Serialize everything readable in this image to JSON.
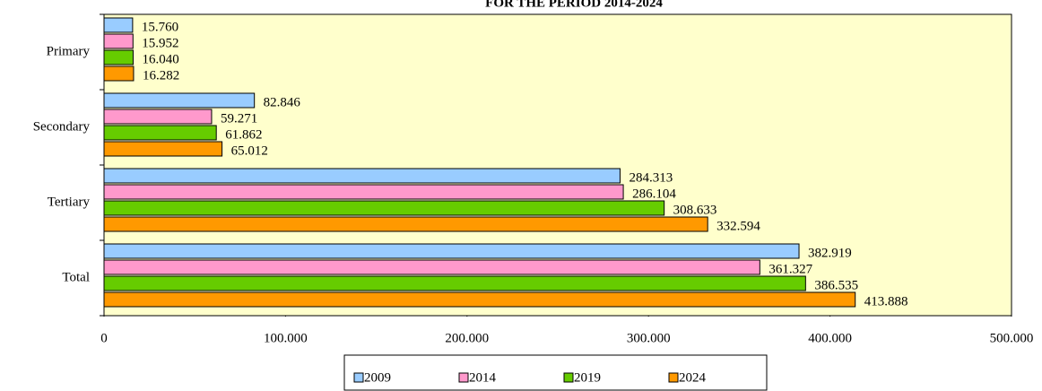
{
  "chart_data": {
    "type": "bar",
    "orientation": "horizontal",
    "title": "FOR THE PERIOD 2014-2024",
    "categories": [
      "Primary",
      "Secondary",
      "Tertiary",
      "Total"
    ],
    "series": [
      {
        "name": "2009",
        "color": "#99ccff",
        "values": [
          15760,
          82846,
          284313,
          382919
        ],
        "value_labels": [
          "15.760",
          "82.846",
          "284.313",
          "382.919"
        ]
      },
      {
        "name": "2014",
        "color": "#ff99cc",
        "values": [
          15952,
          59271,
          286104,
          361327
        ],
        "value_labels": [
          "15.952",
          "59.271",
          "286.104",
          "361.327"
        ]
      },
      {
        "name": "2019",
        "color": "#66cc00",
        "values": [
          16040,
          61862,
          308633,
          386535
        ],
        "value_labels": [
          "16.040",
          "61.862",
          "308.633",
          "386.535"
        ]
      },
      {
        "name": "2024",
        "color": "#ff9900",
        "values": [
          16282,
          65012,
          332594,
          413888
        ],
        "value_labels": [
          "16.282",
          "65.012",
          "332.594",
          "413.888"
        ]
      }
    ],
    "xlim": [
      0,
      500000
    ],
    "xticks": [
      0,
      {
        "value": 100000,
        "label": "100.000"
      },
      {
        "value": 200000,
        "label": "200.000"
      },
      {
        "value": 300000,
        "label": "300.000"
      },
      {
        "value": 400000,
        "label": "400.000"
      },
      {
        "value": 500000,
        "label": "500.000"
      }
    ],
    "background": "#ffffcc",
    "legend": "bottom"
  }
}
